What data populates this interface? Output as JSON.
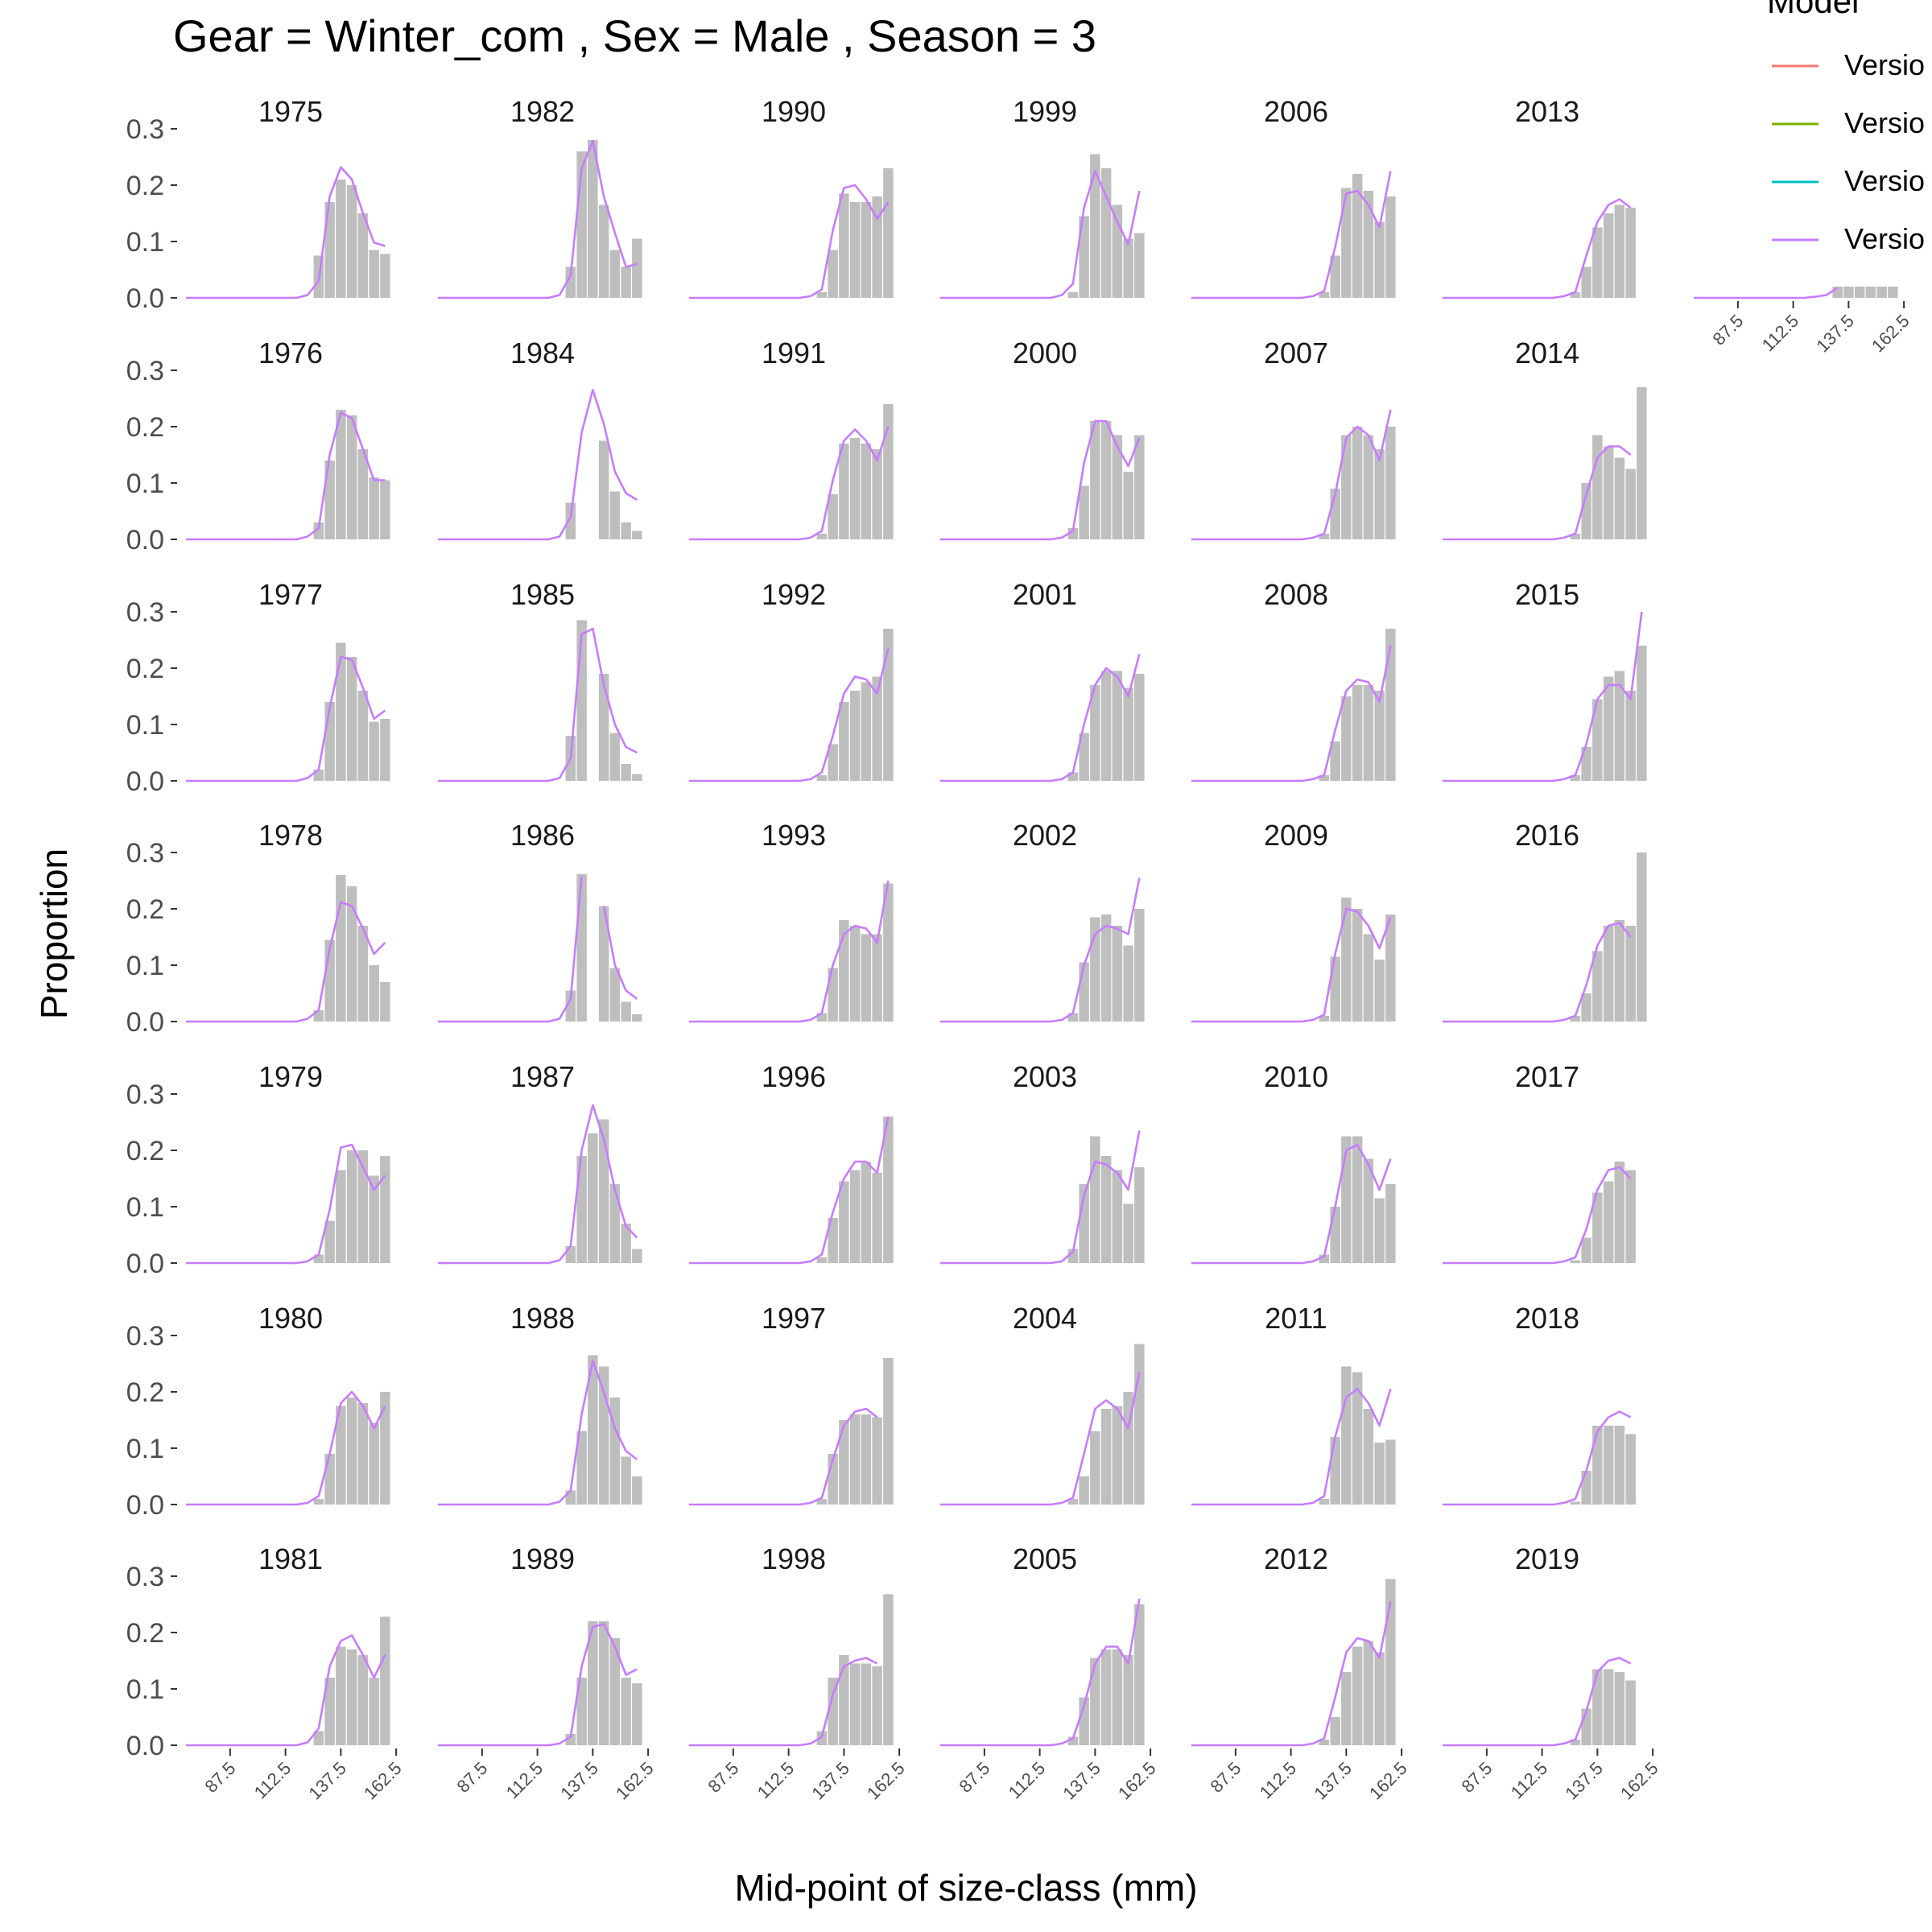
{
  "chart_data": {
    "type": "bar",
    "title": "Gear = Winter_com , Sex = Male , Season = 3",
    "xlabel": "Mid-point of size-class (mm)",
    "ylabel": "Proportion",
    "legend": {
      "title": "Model",
      "placement": "right",
      "entries": [
        {
          "label": "Versio",
          "color": "#F8766D"
        },
        {
          "label": "Versio",
          "color": "#7CAE00"
        },
        {
          "label": "Versio",
          "color": "#00BFC4"
        },
        {
          "label": "Versio",
          "color": "#C77CFF"
        }
      ]
    },
    "x_midpoints": [
      67.5,
      72.5,
      77.5,
      82.5,
      87.5,
      92.5,
      97.5,
      102.5,
      107.5,
      112.5,
      117.5,
      122.5,
      127.5,
      132.5,
      137.5,
      142.5,
      147.5,
      152.5,
      157.5,
      162.5
    ],
    "x_ticks": [
      "87.5",
      "112.5",
      "137.5",
      "162.5"
    ],
    "xlim": [
      65,
      165
    ],
    "y_ticks": [
      "0.0",
      "0.1",
      "0.2",
      "0.3"
    ],
    "ylim": [
      0,
      0.3
    ],
    "grid": false,
    "bar_color": "#BEBEBE",
    "line_color": "#C77CFF",
    "bar_series": "observed",
    "line_series": "predicted",
    "panels": [
      {
        "year": "1975",
        "obs": {
          "12": 0.075,
          "13": 0.17,
          "14": 0.21,
          "15": 0.2,
          "16": 0.15,
          "17": 0.085,
          "18": 0.078
        },
        "pred": {
          "11": 0.005,
          "12": 0.03,
          "13": 0.18,
          "14": 0.232,
          "15": 0.21,
          "16": 0.15,
          "17": 0.098,
          "18": 0.092
        }
      },
      {
        "year": "1976",
        "obs": {
          "12": 0.03,
          "13": 0.14,
          "14": 0.23,
          "15": 0.22,
          "16": 0.16,
          "17": 0.11,
          "18": 0.105
        },
        "pred": {
          "11": 0.005,
          "12": 0.02,
          "13": 0.15,
          "14": 0.225,
          "15": 0.215,
          "16": 0.16,
          "17": 0.105,
          "18": 0.105
        }
      },
      {
        "year": "1977",
        "obs": {
          "12": 0.02,
          "13": 0.14,
          "14": 0.245,
          "15": 0.22,
          "16": 0.16,
          "17": 0.105,
          "18": 0.11
        },
        "pred": {
          "11": 0.005,
          "12": 0.02,
          "13": 0.13,
          "14": 0.22,
          "15": 0.215,
          "16": 0.165,
          "17": 0.11,
          "18": 0.125
        }
      },
      {
        "year": "1978",
        "obs": {
          "12": 0.02,
          "13": 0.145,
          "14": 0.26,
          "15": 0.24,
          "16": 0.17,
          "17": 0.1,
          "18": 0.07
        },
        "pred": {
          "11": 0.005,
          "12": 0.02,
          "13": 0.13,
          "14": 0.212,
          "15": 0.205,
          "16": 0.165,
          "17": 0.12,
          "18": 0.14
        }
      },
      {
        "year": "1979",
        "obs": {
          "12": 0.015,
          "13": 0.075,
          "14": 0.165,
          "15": 0.2,
          "16": 0.2,
          "17": 0.155,
          "18": 0.19
        },
        "pred": {
          "11": 0.003,
          "12": 0.015,
          "13": 0.095,
          "14": 0.205,
          "15": 0.21,
          "16": 0.17,
          "17": 0.13,
          "18": 0.155
        }
      },
      {
        "year": "1980",
        "obs": {
          "12": 0.01,
          "13": 0.09,
          "14": 0.175,
          "15": 0.19,
          "16": 0.18,
          "17": 0.145,
          "18": 0.2
        },
        "pred": {
          "11": 0.003,
          "12": 0.015,
          "13": 0.09,
          "14": 0.18,
          "15": 0.2,
          "16": 0.175,
          "17": 0.135,
          "18": 0.175
        }
      },
      {
        "year": "1981",
        "obs": {
          "12": 0.025,
          "13": 0.12,
          "14": 0.175,
          "15": 0.17,
          "16": 0.16,
          "17": 0.12,
          "18": 0.228
        },
        "pred": {
          "11": 0.005,
          "12": 0.03,
          "13": 0.14,
          "14": 0.185,
          "15": 0.195,
          "16": 0.16,
          "17": 0.12,
          "18": 0.16
        }
      },
      {
        "year": "1982",
        "obs": {
          "12": 0.055,
          "13": 0.26,
          "14": 0.28,
          "15": 0.165,
          "16": 0.085,
          "17": 0.055,
          "18": 0.105
        },
        "pred": {
          "11": 0.005,
          "12": 0.04,
          "13": 0.23,
          "14": 0.278,
          "15": 0.18,
          "16": 0.115,
          "17": 0.055,
          "18": 0.06
        }
      },
      {
        "year": "1984",
        "obs": {
          "12": 0.065,
          "15": 0.175,
          "16": 0.085,
          "17": 0.03,
          "18": 0.015
        },
        "pred": {
          "11": 0.005,
          "12": 0.04,
          "13": 0.19,
          "14": 0.265,
          "15": 0.205,
          "16": 0.12,
          "17": 0.082,
          "18": 0.07
        }
      },
      {
        "year": "1985",
        "obs": {
          "12": 0.08,
          "13": 0.285,
          "15": 0.19,
          "16": 0.085,
          "17": 0.03,
          "18": 0.012
        },
        "pred": {
          "11": 0.005,
          "12": 0.04,
          "13": 0.26,
          "14": 0.27,
          "15": 0.17,
          "16": 0.1,
          "17": 0.06,
          "18": 0.05
        }
      },
      {
        "year": "1986",
        "obs": {
          "12": 0.055,
          "13": 0.262,
          "15": 0.205,
          "16": 0.095,
          "17": 0.035,
          "18": 0.013
        },
        "pred": {
          "11": 0.005,
          "12": 0.04,
          "13": 0.258
        },
        "pred2": {
          "15": 0.205,
          "16": 0.1,
          "17": 0.055,
          "18": 0.04
        }
      },
      {
        "year": "1987",
        "obs": {
          "12": 0.03,
          "13": 0.19,
          "14": 0.23,
          "15": 0.255,
          "16": 0.14,
          "17": 0.07,
          "18": 0.025
        },
        "pred": {
          "11": 0.005,
          "12": 0.03,
          "13": 0.2,
          "14": 0.28,
          "15": 0.22,
          "16": 0.13,
          "17": 0.065,
          "18": 0.045
        }
      },
      {
        "year": "1988",
        "obs": {
          "12": 0.025,
          "13": 0.13,
          "14": 0.265,
          "15": 0.245,
          "16": 0.19,
          "17": 0.085,
          "18": 0.05
        },
        "pred": {
          "11": 0.005,
          "12": 0.025,
          "13": 0.16,
          "14": 0.255,
          "15": 0.2,
          "16": 0.135,
          "17": 0.095,
          "18": 0.08
        }
      },
      {
        "year": "1989",
        "obs": {
          "12": 0.02,
          "13": 0.12,
          "14": 0.22,
          "15": 0.22,
          "16": 0.19,
          "17": 0.12,
          "18": 0.11
        },
        "pred": {
          "11": 0.003,
          "12": 0.015,
          "13": 0.14,
          "14": 0.21,
          "15": 0.215,
          "16": 0.175,
          "17": 0.125,
          "18": 0.135
        }
      },
      {
        "year": "1990",
        "obs": {
          "12": 0.01,
          "13": 0.085,
          "14": 0.185,
          "15": 0.17,
          "16": 0.17,
          "17": 0.18,
          "18": 0.23
        },
        "pred": {
          "11": 0.003,
          "12": 0.015,
          "13": 0.12,
          "14": 0.195,
          "15": 0.2,
          "16": 0.175,
          "17": 0.14,
          "18": 0.17
        }
      },
      {
        "year": "1991",
        "obs": {
          "12": 0.01,
          "13": 0.08,
          "14": 0.17,
          "15": 0.18,
          "16": 0.17,
          "17": 0.16,
          "18": 0.24
        },
        "pred": {
          "11": 0.003,
          "12": 0.015,
          "13": 0.105,
          "14": 0.175,
          "15": 0.195,
          "16": 0.175,
          "17": 0.14,
          "18": 0.2
        }
      },
      {
        "year": "1992",
        "obs": {
          "12": 0.01,
          "13": 0.065,
          "14": 0.14,
          "15": 0.16,
          "16": 0.175,
          "17": 0.185,
          "18": 0.27
        },
        "pred": {
          "11": 0.003,
          "12": 0.015,
          "13": 0.08,
          "14": 0.155,
          "15": 0.185,
          "16": 0.18,
          "17": 0.155,
          "18": 0.235
        }
      },
      {
        "year": "1993",
        "obs": {
          "12": 0.015,
          "13": 0.095,
          "14": 0.18,
          "15": 0.17,
          "16": 0.155,
          "17": 0.155,
          "18": 0.245
        },
        "pred": {
          "11": 0.003,
          "12": 0.015,
          "13": 0.1,
          "14": 0.155,
          "15": 0.17,
          "16": 0.165,
          "17": 0.14,
          "18": 0.25
        }
      },
      {
        "year": "1996",
        "obs": {
          "12": 0.01,
          "13": 0.08,
          "14": 0.145,
          "15": 0.165,
          "16": 0.18,
          "17": 0.16,
          "18": 0.26
        },
        "pred": {
          "11": 0.003,
          "12": 0.015,
          "13": 0.09,
          "14": 0.15,
          "15": 0.18,
          "16": 0.18,
          "17": 0.16,
          "18": 0.26
        }
      },
      {
        "year": "1997",
        "obs": {
          "12": 0.01,
          "13": 0.09,
          "14": 0.15,
          "15": 0.16,
          "16": 0.16,
          "17": 0.155,
          "18": 0.26
        },
        "pred": {
          "11": 0.003,
          "12": 0.012,
          "13": 0.08,
          "14": 0.14,
          "15": 0.165,
          "16": 0.17,
          "17": 0.155
        }
      },
      {
        "year": "1998",
        "obs": {
          "12": 0.025,
          "13": 0.12,
          "14": 0.16,
          "15": 0.145,
          "16": 0.145,
          "17": 0.14,
          "18": 0.268
        },
        "pred": {
          "11": 0.003,
          "12": 0.015,
          "13": 0.09,
          "14": 0.14,
          "15": 0.15,
          "16": 0.155,
          "17": 0.145
        }
      },
      {
        "year": "1999",
        "obs": {
          "12": 0.01,
          "13": 0.145,
          "14": 0.255,
          "15": 0.23,
          "16": 0.165,
          "17": 0.105,
          "18": 0.115
        },
        "pred": {
          "11": 0.005,
          "12": 0.025,
          "13": 0.16,
          "14": 0.225,
          "15": 0.18,
          "16": 0.135,
          "17": 0.095,
          "18": 0.19
        }
      },
      {
        "year": "2000",
        "obs": {
          "12": 0.02,
          "13": 0.095,
          "14": 0.21,
          "15": 0.21,
          "16": 0.185,
          "17": 0.12,
          "18": 0.185
        },
        "pred": {
          "11": 0.003,
          "12": 0.015,
          "13": 0.135,
          "14": 0.21,
          "15": 0.21,
          "16": 0.165,
          "17": 0.13,
          "18": 0.18
        }
      },
      {
        "year": "2001",
        "obs": {
          "12": 0.015,
          "13": 0.085,
          "14": 0.17,
          "15": 0.195,
          "16": 0.195,
          "17": 0.165,
          "18": 0.19
        },
        "pred": {
          "11": 0.003,
          "12": 0.015,
          "13": 0.1,
          "14": 0.17,
          "15": 0.2,
          "16": 0.185,
          "17": 0.15,
          "18": 0.225
        }
      },
      {
        "year": "2002",
        "obs": {
          "12": 0.015,
          "13": 0.105,
          "14": 0.185,
          "15": 0.19,
          "16": 0.17,
          "17": 0.135,
          "18": 0.2
        },
        "pred": {
          "11": 0.003,
          "12": 0.015,
          "13": 0.1,
          "14": 0.155,
          "15": 0.17,
          "16": 0.165,
          "17": 0.155,
          "18": 0.255
        }
      },
      {
        "year": "2003",
        "obs": {
          "12": 0.025,
          "13": 0.14,
          "14": 0.225,
          "15": 0.19,
          "16": 0.165,
          "17": 0.105,
          "18": 0.17
        },
        "pred": {
          "11": 0.003,
          "12": 0.02,
          "13": 0.12,
          "14": 0.18,
          "15": 0.175,
          "16": 0.16,
          "17": 0.13,
          "18": 0.235
        }
      },
      {
        "year": "2004",
        "obs": {
          "12": 0.01,
          "13": 0.05,
          "14": 0.13,
          "15": 0.17,
          "16": 0.175,
          "17": 0.2,
          "18": 0.285
        },
        "pred": {
          "11": 0.003,
          "12": 0.012,
          "13": 0.09,
          "14": 0.17,
          "15": 0.185,
          "16": 0.17,
          "17": 0.135,
          "18": 0.235
        }
      },
      {
        "year": "2005",
        "obs": {
          "12": 0.015,
          "13": 0.085,
          "14": 0.155,
          "15": 0.17,
          "16": 0.17,
          "17": 0.16,
          "18": 0.25
        },
        "pred": {
          "11": 0.003,
          "12": 0.012,
          "13": 0.07,
          "14": 0.145,
          "15": 0.175,
          "16": 0.175,
          "17": 0.145,
          "18": 0.26
        }
      },
      {
        "year": "2006",
        "obs": {
          "12": 0.01,
          "13": 0.075,
          "14": 0.195,
          "15": 0.22,
          "16": 0.19,
          "17": 0.135,
          "18": 0.18
        },
        "pred": {
          "11": 0.003,
          "12": 0.012,
          "13": 0.09,
          "14": 0.185,
          "15": 0.19,
          "16": 0.165,
          "17": 0.125,
          "18": 0.225
        }
      },
      {
        "year": "2007",
        "obs": {
          "12": 0.01,
          "13": 0.09,
          "14": 0.185,
          "15": 0.2,
          "16": 0.185,
          "17": 0.16,
          "18": 0.2
        },
        "pred": {
          "11": 0.003,
          "12": 0.01,
          "13": 0.08,
          "14": 0.18,
          "15": 0.2,
          "16": 0.185,
          "17": 0.14,
          "18": 0.23
        }
      },
      {
        "year": "2008",
        "obs": {
          "12": 0.01,
          "13": 0.07,
          "14": 0.15,
          "15": 0.17,
          "16": 0.17,
          "17": 0.16,
          "18": 0.27
        },
        "pred": {
          "11": 0.003,
          "12": 0.01,
          "13": 0.09,
          "14": 0.16,
          "15": 0.18,
          "16": 0.175,
          "17": 0.14,
          "18": 0.24
        }
      },
      {
        "year": "2009",
        "obs": {
          "12": 0.01,
          "13": 0.115,
          "14": 0.22,
          "15": 0.2,
          "16": 0.155,
          "17": 0.11,
          "18": 0.19
        },
        "pred": {
          "11": 0.003,
          "12": 0.012,
          "13": 0.12,
          "14": 0.2,
          "15": 0.195,
          "16": 0.17,
          "17": 0.13,
          "18": 0.185
        }
      },
      {
        "year": "2010",
        "obs": {
          "12": 0.015,
          "13": 0.1,
          "14": 0.225,
          "15": 0.225,
          "16": 0.185,
          "17": 0.115,
          "18": 0.14
        },
        "pred": {
          "11": 0.003,
          "12": 0.012,
          "13": 0.1,
          "14": 0.2,
          "15": 0.21,
          "16": 0.175,
          "17": 0.13,
          "18": 0.185
        }
      },
      {
        "year": "2011",
        "obs": {
          "12": 0.01,
          "13": 0.12,
          "14": 0.245,
          "15": 0.235,
          "16": 0.17,
          "17": 0.11,
          "18": 0.115
        },
        "pred": {
          "11": 0.003,
          "12": 0.015,
          "13": 0.12,
          "14": 0.19,
          "15": 0.205,
          "16": 0.18,
          "17": 0.14,
          "18": 0.205
        }
      },
      {
        "year": "2012",
        "obs": {
          "12": 0.01,
          "13": 0.05,
          "14": 0.13,
          "15": 0.175,
          "16": 0.185,
          "17": 0.165,
          "18": 0.295
        },
        "pred": {
          "11": 0.003,
          "12": 0.012,
          "13": 0.085,
          "14": 0.165,
          "15": 0.19,
          "16": 0.185,
          "17": 0.155,
          "18": 0.255
        }
      },
      {
        "year": "2013",
        "obs": {
          "12": 0.01,
          "13": 0.055,
          "14": 0.125,
          "15": 0.15,
          "16": 0.165,
          "17": 0.16
        },
        "pred": {
          "11": 0.003,
          "12": 0.01,
          "13": 0.075,
          "14": 0.135,
          "15": 0.165,
          "16": 0.175,
          "17": 0.16
        }
      },
      {
        "year": "2014",
        "obs": {
          "12": 0.01,
          "13": 0.1,
          "14": 0.185,
          "15": 0.165,
          "16": 0.145,
          "17": 0.125,
          "18": 0.27
        },
        "pred": {
          "11": 0.003,
          "12": 0.01,
          "13": 0.08,
          "14": 0.145,
          "15": 0.165,
          "16": 0.165,
          "17": 0.15
        }
      },
      {
        "year": "2015",
        "obs": {
          "12": 0.01,
          "13": 0.06,
          "14": 0.145,
          "15": 0.185,
          "16": 0.195,
          "17": 0.16,
          "18": 0.24
        },
        "pred": {
          "11": 0.003,
          "12": 0.01,
          "13": 0.065,
          "14": 0.145,
          "15": 0.17,
          "16": 0.17,
          "17": 0.145,
          "18": 0.3
        }
      },
      {
        "year": "2016",
        "obs": {
          "12": 0.01,
          "13": 0.05,
          "14": 0.125,
          "15": 0.17,
          "16": 0.18,
          "17": 0.17,
          "18": 0.3
        },
        "pred": {
          "11": 0.003,
          "12": 0.01,
          "13": 0.065,
          "14": 0.135,
          "15": 0.17,
          "16": 0.175,
          "17": 0.15
        }
      },
      {
        "year": "2017",
        "obs": {
          "12": 0.005,
          "13": 0.045,
          "14": 0.125,
          "15": 0.145,
          "16": 0.18,
          "17": 0.165
        },
        "pred": {
          "11": 0.003,
          "12": 0.01,
          "13": 0.06,
          "14": 0.13,
          "15": 0.165,
          "16": 0.17,
          "17": 0.15
        }
      },
      {
        "year": "2018",
        "obs": {
          "12": 0.005,
          "13": 0.06,
          "14": 0.14,
          "15": 0.14,
          "16": 0.14,
          "17": 0.125
        },
        "pred": {
          "11": 0.003,
          "12": 0.01,
          "13": 0.06,
          "14": 0.13,
          "15": 0.155,
          "16": 0.165,
          "17": 0.155
        }
      },
      {
        "year": "2019",
        "obs": {
          "12": 0.01,
          "13": 0.065,
          "14": 0.135,
          "15": 0.135,
          "16": 0.13,
          "17": 0.115
        },
        "pred": {
          "11": 0.003,
          "12": 0.01,
          "13": 0.06,
          "14": 0.13,
          "15": 0.15,
          "16": 0.155,
          "17": 0.145
        }
      },
      {
        "year": "",
        "obs": {
          "13": 0.02,
          "14": 0.02,
          "15": 0.02,
          "16": 0.02,
          "17": 0.02,
          "18": 0.02
        },
        "pred": {
          "11": 0.002,
          "12": 0.005,
          "13": 0.018
        }
      }
    ]
  }
}
